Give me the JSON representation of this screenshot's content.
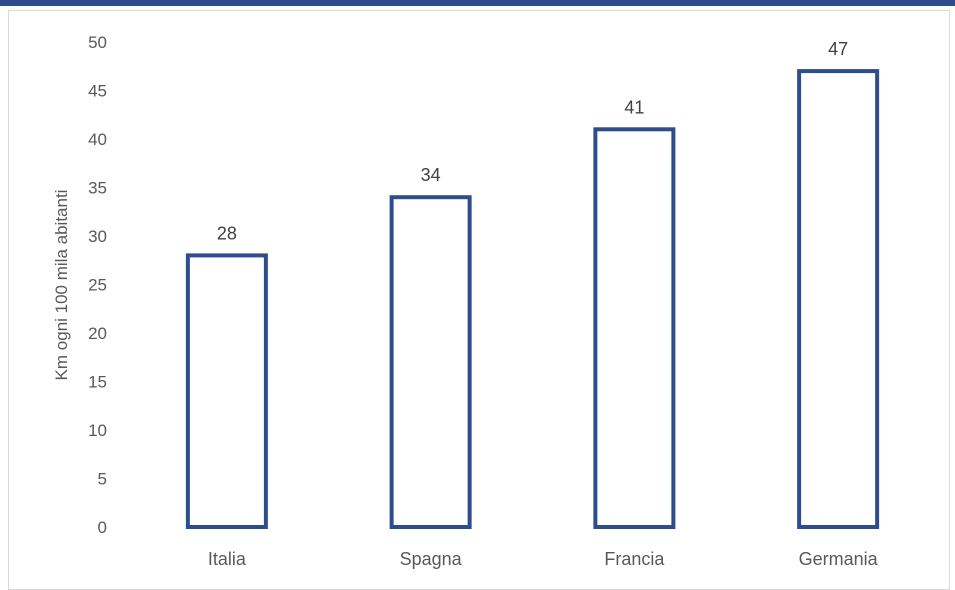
{
  "chart_data": {
    "type": "bar",
    "categories": [
      "Italia",
      "Spagna",
      "Francia",
      "Germania"
    ],
    "values": [
      28,
      34,
      41,
      47
    ],
    "data_labels": [
      "28",
      "34",
      "41",
      "47"
    ],
    "title": "",
    "xlabel": "",
    "ylabel": "Km ogni 100 mila abitanti",
    "ylim": [
      0,
      50
    ],
    "yticks": [
      0,
      5,
      10,
      15,
      20,
      25,
      30,
      35,
      40,
      45,
      50
    ],
    "grid": false,
    "bar_style": "outline",
    "bar_color": "#2e4d8f"
  }
}
